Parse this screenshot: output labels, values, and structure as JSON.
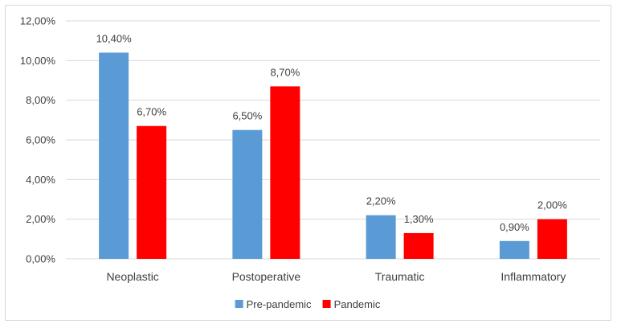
{
  "chart_data": {
    "type": "bar",
    "categories": [
      "Neoplastic",
      "Postoperative",
      "Traumatic",
      "Inflammatory"
    ],
    "series": [
      {
        "name": "Pre-pandemic",
        "color": "#5b9bd5",
        "values": [
          10.4,
          6.5,
          2.2,
          0.9
        ],
        "labels": [
          "10,40%",
          "6,50%",
          "2,20%",
          "0,90%"
        ]
      },
      {
        "name": "Pandemic",
        "color": "#ff0000",
        "values": [
          6.7,
          8.7,
          1.3,
          2.0
        ],
        "labels": [
          "6,70%",
          "8,70%",
          "1,30%",
          "2,00%"
        ]
      }
    ],
    "y_ticks": [
      0,
      2,
      4,
      6,
      8,
      10,
      12
    ],
    "y_tick_labels": [
      "0,00%",
      "2,00%",
      "4,00%",
      "6,00%",
      "8,00%",
      "10,00%",
      "12,00%"
    ],
    "ylim": [
      0,
      12
    ],
    "grid": true,
    "legend_position": "bottom"
  }
}
